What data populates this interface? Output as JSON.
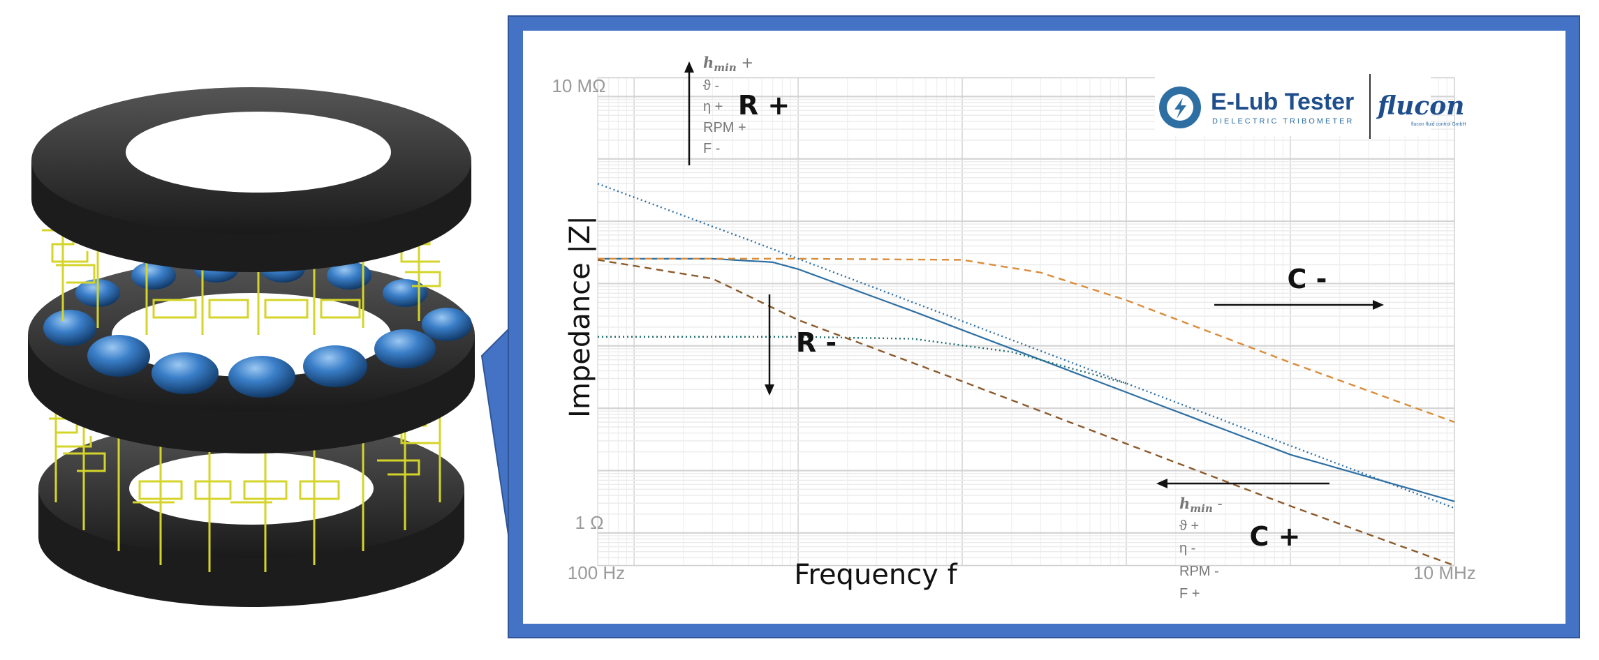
{
  "chart_data": {
    "type": "line",
    "xlabel": "Frequency f",
    "ylabel": "Impedance |Z|",
    "x_scale": "log",
    "y_scale": "log",
    "x_ticks": [
      "100 Hz",
      "10 MHz"
    ],
    "y_ticks": [
      "10 MΩ",
      "1 Ω"
    ],
    "grid": true,
    "series": [
      {
        "style": "solid",
        "color": "#2e6fa3",
        "x": [
          60,
          300,
          700,
          1000,
          5000,
          100000,
          1000000,
          10000000
        ],
        "y": [
          25000,
          25000,
          22000,
          17000,
          3600,
          180,
          18,
          3.2
        ]
      },
      {
        "style": "dotted",
        "color": "#2e6fa3",
        "x": [
          60,
          500,
          2000,
          100000,
          10000000
        ],
        "y": [
          400000,
          50000,
          12500,
          250,
          2.5
        ]
      },
      {
        "style": "dotted",
        "color": "#1f6b6b",
        "x": [
          60,
          1000,
          5000,
          20000,
          100000
        ],
        "y": [
          1400,
          1400,
          1300,
          800,
          250
        ]
      },
      {
        "style": "dashed",
        "color": "#d98c3a",
        "x": [
          60,
          1000,
          10000,
          30000,
          100000,
          1000000,
          10000000
        ],
        "y": [
          25000,
          25000,
          24000,
          15000,
          5400,
          540,
          60
        ]
      },
      {
        "style": "dashed",
        "color": "#8b5a2b",
        "x": [
          60,
          300,
          1000,
          10000,
          100000,
          1000000,
          10000000
        ],
        "y": [
          24000,
          12000,
          2600,
          270,
          27,
          2.7,
          0.3
        ]
      }
    ],
    "annotations": {
      "r_plus": {
        "text": "R +",
        "params": [
          "h_min +",
          "ϑ -",
          "η +",
          "RPM +",
          "F -"
        ]
      },
      "r_minus": {
        "text": "R -"
      },
      "c_minus": {
        "text": "C -"
      },
      "c_plus": {
        "text": "C +",
        "params": [
          "h_min -",
          "ϑ +",
          "η -",
          "RPM -",
          "F +"
        ]
      }
    }
  },
  "logos": {
    "elub_title": "E-Lub Tester",
    "elub_subtitle": "DIELECTRIC TRIBOMETER",
    "flucon": "flucon",
    "flucon_sub": "flucon fluid control GmbH"
  },
  "colors": {
    "frame": "#4472c4",
    "impedance": "#2e6fa3",
    "c_minus_curve": "#d98c3a",
    "c_plus_curve": "#8b5a2b",
    "bearing_ring": "#2b2b2b",
    "balls": "#3a7ec8",
    "wiring": "#d4d42a"
  }
}
